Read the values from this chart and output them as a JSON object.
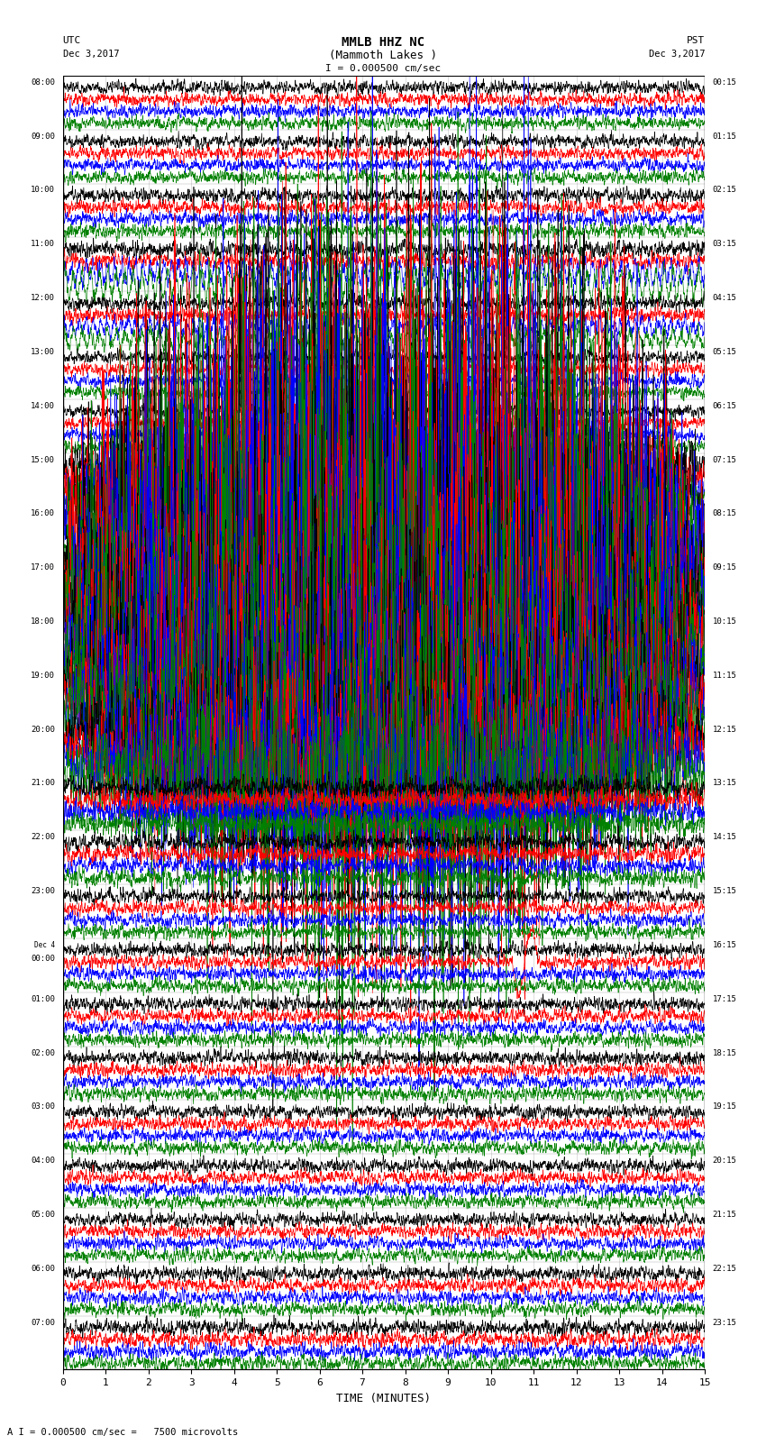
{
  "title_line1": "MMLB HHZ NC",
  "title_line2": "(Mammoth Lakes )",
  "scale_label": "I = 0.000500 cm/sec",
  "bottom_label": "A I = 0.000500 cm/sec =   7500 microvolts",
  "utc_label": "UTC",
  "utc_date": "Dec 3,2017",
  "pst_label": "PST",
  "pst_date": "Dec 3,2017",
  "xlabel": "TIME (MINUTES)",
  "bg_color": "#ffffff",
  "trace_colors": [
    "#000000",
    "#ff0000",
    "#0000ff",
    "#008000"
  ],
  "left_times_utc": [
    "08:00",
    "09:00",
    "10:00",
    "11:00",
    "12:00",
    "13:00",
    "14:00",
    "15:00",
    "16:00",
    "17:00",
    "18:00",
    "19:00",
    "20:00",
    "21:00",
    "22:00",
    "23:00",
    "Dec 4\n00:00",
    "01:00",
    "02:00",
    "03:00",
    "04:00",
    "05:00",
    "06:00",
    "07:00"
  ],
  "right_times_pst": [
    "00:15",
    "01:15",
    "02:15",
    "03:15",
    "04:15",
    "05:15",
    "06:15",
    "07:15",
    "08:15",
    "09:15",
    "10:15",
    "11:15",
    "12:15",
    "13:15",
    "14:15",
    "15:15",
    "16:15",
    "17:15",
    "18:15",
    "19:15",
    "20:15",
    "21:15",
    "22:15",
    "23:15"
  ],
  "n_rows": 24,
  "traces_per_row": 4,
  "minutes": 15,
  "xmin": 0,
  "xmax": 15,
  "xticks": [
    0,
    1,
    2,
    3,
    4,
    5,
    6,
    7,
    8,
    9,
    10,
    11,
    12,
    13,
    14,
    15
  ],
  "row_amplitudes": [
    0.055,
    0.055,
    0.06,
    0.07,
    0.065,
    0.055,
    0.055,
    0.09,
    0.28,
    0.32,
    0.26,
    0.22,
    0.18,
    0.1,
    0.075,
    0.06,
    0.06,
    0.06,
    0.06,
    0.058,
    0.058,
    0.058,
    0.06,
    0.065
  ]
}
